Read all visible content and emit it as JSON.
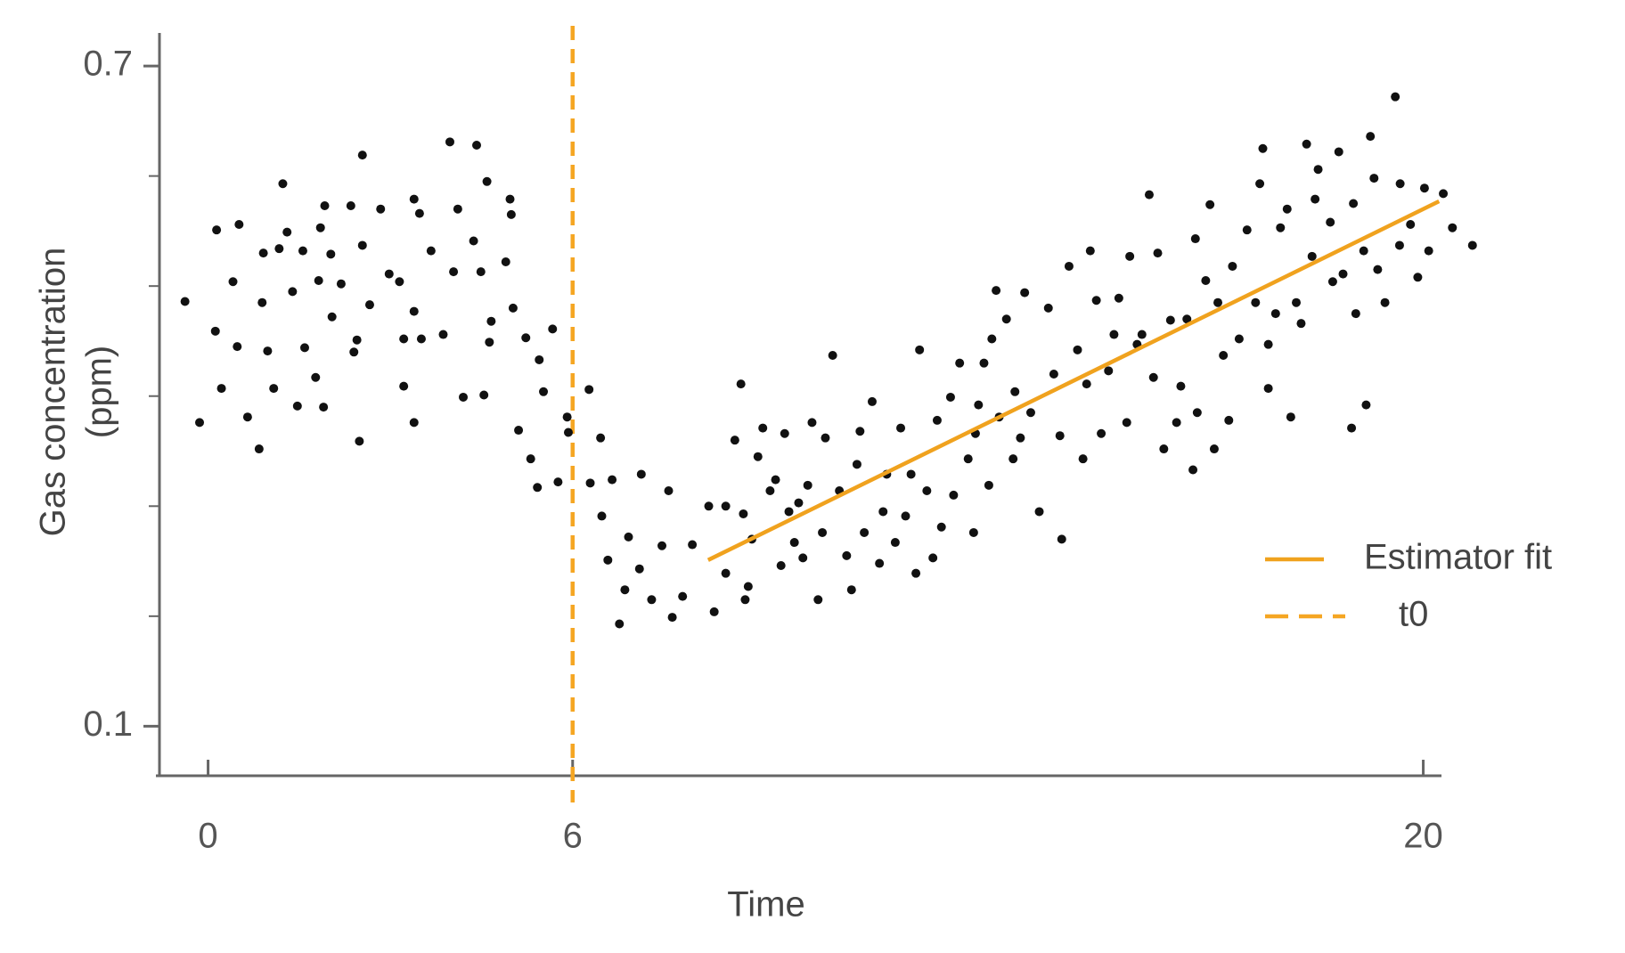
{
  "chart_data": {
    "type": "scatter",
    "xlabel": "Time",
    "ylabel": [
      "Gas concentration",
      "(ppm)"
    ],
    "xlim": [
      -0.8,
      20.3
    ],
    "ylim": [
      0.055,
      0.73
    ],
    "xticks": [
      0,
      6,
      20
    ],
    "yticks": [
      0.1,
      0.7
    ],
    "y_minor_ticks": [
      0.2,
      0.3,
      0.4,
      0.5,
      0.6
    ],
    "grid": false,
    "legend": "right",
    "point_color": "#111111",
    "x": [
      -0.38,
      -0.14,
      0.14,
      0.12,
      0.22,
      0.41,
      0.51,
      0.48,
      0.65,
      0.84,
      0.89,
      0.91,
      0.98,
      1.08,
      1.17,
      1.23,
      1.3,
      1.39,
      1.47,
      1.56,
      1.59,
      1.77,
      1.82,
      1.85,
      1.9,
      1.92,
      2.02,
      2.04,
      2.19,
      2.35,
      2.4,
      2.45,
      2.49,
      2.54,
      2.54,
      2.66,
      2.84,
      2.98,
      3.15,
      3.22,
      3.22,
      3.39,
      3.39,
      3.39,
      3.48,
      3.51,
      3.67,
      3.87,
      3.98,
      4.04,
      4.11,
      4.2,
      4.37,
      4.42,
      4.49,
      4.54,
      4.59,
      4.63,
      4.66,
      4.9,
      4.97,
      4.99,
      5.02,
      5.11,
      5.23,
      5.31,
      5.42,
      5.45,
      5.52,
      5.67,
      5.76,
      5.91,
      5.93,
      6.27,
      6.29,
      6.46,
      6.48,
      6.58,
      6.65,
      6.77,
      6.86,
      6.92,
      7.1,
      7.13,
      7.3,
      7.47,
      7.58,
      7.64,
      7.81,
      7.97,
      8.24,
      8.33,
      8.52,
      8.52,
      8.67,
      8.77,
      8.81,
      8.84,
      8.89,
      8.95,
      9.05,
      9.13,
      9.25,
      9.34,
      9.43,
      9.49,
      9.56,
      9.65,
      9.72,
      9.79,
      9.87,
      9.94,
      10.04,
      10.11,
      10.16,
      10.28,
      10.39,
      10.51,
      10.59,
      10.68,
      10.73,
      10.8,
      10.93,
      11.05,
      11.11,
      11.17,
      11.31,
      11.4,
      11.48,
      11.57,
      11.65,
      11.71,
      11.83,
      11.93,
      12.0,
      12.07,
      12.22,
      12.27,
      12.37,
      12.51,
      12.6,
      12.63,
      12.68,
      12.77,
      12.85,
      12.9,
      12.97,
      13.02,
      13.14,
      13.25,
      13.28,
      13.37,
      13.44,
      13.54,
      13.68,
      13.83,
      13.92,
      14.02,
      14.05,
      14.17,
      14.31,
      14.4,
      14.46,
      14.52,
      14.62,
      14.7,
      14.82,
      14.91,
      14.99,
      15.12,
      15.17,
      15.29,
      15.37,
      15.49,
      15.56,
      15.63,
      15.73,
      15.84,
      15.94,
      16.01,
      16.11,
      16.21,
      16.25,
      16.28,
      16.42,
      16.49,
      16.56,
      16.62,
      16.71,
      16.8,
      16.86,
      16.97,
      17.1,
      17.24,
      17.31,
      17.36,
      17.45,
      17.45,
      17.57,
      17.65,
      17.76,
      17.82,
      17.91,
      17.99,
      18.08,
      18.17,
      18.22,
      18.27,
      18.47,
      18.51,
      18.61,
      18.68,
      18.82,
      18.85,
      18.89,
      19.02,
      19.06,
      19.13,
      19.19,
      19.25,
      19.37,
      19.54,
      19.61,
      19.62,
      19.79,
      19.91,
      20.02,
      20.09,
      20.33,
      20.48,
      20.81
    ],
    "values": [
      0.486,
      0.376,
      0.551,
      0.459,
      0.407,
      0.504,
      0.556,
      0.445,
      0.381,
      0.352,
      0.485,
      0.53,
      0.441,
      0.407,
      0.534,
      0.593,
      0.549,
      0.495,
      0.391,
      0.532,
      0.444,
      0.417,
      0.505,
      0.553,
      0.39,
      0.573,
      0.529,
      0.472,
      0.502,
      0.573,
      0.44,
      0.451,
      0.359,
      0.537,
      0.619,
      0.483,
      0.57,
      0.511,
      0.504,
      0.409,
      0.452,
      0.579,
      0.477,
      0.376,
      0.566,
      0.452,
      0.532,
      0.456,
      0.631,
      0.513,
      0.57,
      0.399,
      0.541,
      0.628,
      0.513,
      0.401,
      0.595,
      0.449,
      0.468,
      0.522,
      0.579,
      0.565,
      0.48,
      0.369,
      0.453,
      0.343,
      0.317,
      0.433,
      0.404,
      0.461,
      0.322,
      0.381,
      0.367,
      0.406,
      0.321,
      0.362,
      0.291,
      0.251,
      0.324,
      0.193,
      0.224,
      0.272,
      0.243,
      0.329,
      0.215,
      0.264,
      0.314,
      0.199,
      0.218,
      0.265,
      0.3,
      0.204,
      0.3,
      0.239,
      0.36,
      0.411,
      0.293,
      0.215,
      0.227,
      0.27,
      0.345,
      0.371,
      0.314,
      0.324,
      0.246,
      0.366,
      0.295,
      0.267,
      0.303,
      0.253,
      0.319,
      0.376,
      0.215,
      0.276,
      0.362,
      0.437,
      0.314,
      0.255,
      0.224,
      0.338,
      0.368,
      0.276,
      0.395,
      0.248,
      0.295,
      0.329,
      0.267,
      0.371,
      0.291,
      0.329,
      0.239,
      0.442,
      0.314,
      0.253,
      0.378,
      0.281,
      0.399,
      0.31,
      0.43,
      0.343,
      0.276,
      0.366,
      0.392,
      0.43,
      0.319,
      0.452,
      0.496,
      0.381,
      0.47,
      0.343,
      0.404,
      0.362,
      0.494,
      0.385,
      0.295,
      0.48,
      0.42,
      0.364,
      0.27,
      0.518,
      0.442,
      0.343,
      0.411,
      0.532,
      0.487,
      0.366,
      0.423,
      0.456,
      0.489,
      0.376,
      0.527,
      0.447,
      0.456,
      0.583,
      0.417,
      0.53,
      0.352,
      0.469,
      0.376,
      0.409,
      0.47,
      0.333,
      0.543,
      0.385,
      0.505,
      0.574,
      0.352,
      0.485,
      0.437,
      0.378,
      0.518,
      0.452,
      0.551,
      0.485,
      0.593,
      0.625,
      0.447,
      0.407,
      0.475,
      0.553,
      0.57,
      0.381,
      0.485,
      0.466,
      0.629,
      0.527,
      0.579,
      0.606,
      0.558,
      0.504,
      0.622,
      0.511,
      0.371,
      0.575,
      0.475,
      0.532,
      0.392,
      0.636,
      0.598,
      0.515,
      0.485,
      0.672,
      0.537,
      0.593,
      0.556,
      0.508,
      0.589,
      0.532,
      0.584,
      0.553,
      0.537
    ],
    "fit": {
      "name": "Estimator fit",
      "color": "#f0a21e",
      "x": [
        8.23,
        20.26
      ],
      "values": [
        0.251,
        0.577
      ]
    },
    "vline": {
      "name": "t0",
      "color": "#f5a623",
      "x": 6
    }
  }
}
